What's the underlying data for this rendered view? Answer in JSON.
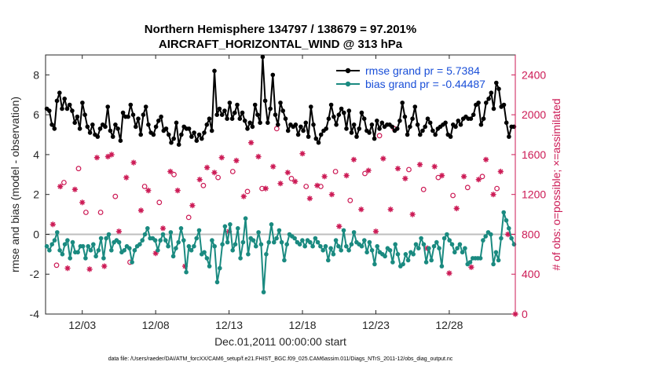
{
  "chart_data": {
    "type": "line",
    "title_line1": "Northern Hemisphere 134797 / 138679 = 97.201%",
    "title_line2": "AIRCRAFT_HORIZONTAL_WIND @ 313 hPa",
    "xlabel": "Dec.01,2011 00:00:00 start",
    "ylabel_left": "rmse and bias (model - observation)",
    "ylabel_right": "# of obs: o=possible; ×=assimilated",
    "footnote": "data file: /Users/raeder/DAI/ATM_forcXX/CAM6_setup/f.e21.FHIST_BGC.f09_025.CAM6assim.011/Diags_NTrS_2011-12/obs_diag_output.nc",
    "xlim": [
      0.5,
      32.5
    ],
    "ylim_left": [
      -4,
      9
    ],
    "ylim_right": [
      0,
      2600
    ],
    "x_ticks": [
      3,
      8,
      13,
      18,
      23,
      28
    ],
    "x_tick_labels": [
      "12/03",
      "12/08",
      "12/13",
      "12/18",
      "12/23",
      "12/28"
    ],
    "y_left_ticks": [
      -4,
      -2,
      0,
      2,
      4,
      6,
      8
    ],
    "y_right_ticks": [
      0,
      400,
      800,
      1200,
      1600,
      2000,
      2400
    ],
    "legend": [
      "rmse grand pr = 5.7384",
      "bias grand pr = -0.44487"
    ],
    "colors": {
      "rmse": "#000000",
      "bias": "#1a8a80",
      "obs": "#cc1a55",
      "zero_line": "#bfbfbf",
      "legend_text": "#1a4fd8"
    },
    "series": [
      {
        "name": "rmse",
        "axis": "left",
        "values": [
          6.3,
          6.2,
          5.5,
          5.3,
          6.7,
          7.1,
          6.3,
          6.8,
          6.3,
          6.5,
          6.2,
          5.6,
          5.9,
          5.3,
          6.6,
          6.0,
          5.4,
          5.1,
          5.5,
          5.0,
          4.9,
          5.3,
          5.5,
          5.4,
          6.4,
          5.2,
          4.9,
          5.5,
          5.3,
          4.7,
          6.1,
          5.9,
          5.9,
          6.5,
          6.0,
          5.4,
          5.8,
          5.0,
          6.0,
          6.4,
          5.5,
          5.1,
          5.0,
          5.4,
          5.7,
          5.9,
          5.2,
          5.3,
          5.0,
          4.6,
          4.8,
          5.6,
          4.5,
          5.0,
          5.4,
          5.3,
          5.3,
          4.9,
          5.1,
          4.7,
          5.0,
          4.8,
          5.1,
          5.5,
          5.8,
          5.2,
          8.2,
          6.0,
          6.3,
          6.0,
          6.2,
          5.8,
          6.6,
          5.8,
          6.1,
          6.5,
          5.8,
          6.1,
          5.7,
          5.3,
          5.6,
          5.4,
          6.5,
          6.0,
          5.6,
          8.9,
          6.7,
          5.6,
          6.3,
          8.0,
          6.0,
          5.5,
          6.6,
          6.2,
          5.8,
          5.2,
          5.5,
          5.4,
          5.5,
          5.0,
          5.4,
          5.2,
          5.6,
          4.9,
          6.4,
          5.5,
          4.8,
          4.6,
          5.0,
          5.2,
          5.3,
          5.8,
          6.5,
          5.9,
          5.5,
          6.0,
          6.3,
          6.1,
          5.3,
          6.2,
          5.1,
          5.5,
          4.9,
          5.3,
          6.1,
          5.8,
          5.2,
          5.1,
          5.5,
          4.8,
          5.7,
          5.3,
          5.6,
          5.4,
          5.5,
          5.5,
          5.4,
          5.2,
          5.3,
          5.7,
          6.6,
          5.9,
          5.0,
          5.4,
          5.8,
          6.4,
          5.5,
          5.0,
          5.2,
          5.4,
          5.8,
          5.6,
          5.2,
          5.0,
          5.3,
          5.4,
          5.5,
          5.6,
          5.0,
          4.9,
          5.5,
          5.4,
          5.7,
          5.5,
          5.8,
          5.9,
          5.8,
          5.8,
          6.0,
          6.5,
          6.6,
          5.5,
          5.8,
          6.6,
          6.8,
          7.1,
          6.3,
          7.6,
          7.3,
          6.4,
          6.5,
          5.6,
          4.9,
          5.4,
          5.4
        ]
      },
      {
        "name": "bias",
        "axis": "left",
        "values": [
          -0.6,
          -0.8,
          -0.5,
          -0.3,
          0.1,
          -0.8,
          -1.0,
          -0.5,
          -0.3,
          -1.2,
          -0.4,
          -0.9,
          -0.9,
          -0.6,
          -0.6,
          -1.2,
          -0.6,
          -0.8,
          -0.5,
          -1.1,
          -0.8,
          -0.2,
          -1.2,
          -0.2,
          0.0,
          -0.8,
          -0.4,
          -0.3,
          -0.4,
          -0.9,
          -0.8,
          -0.6,
          -0.7,
          -1.4,
          -0.8,
          -0.6,
          -0.5,
          -0.3,
          0.0,
          0.3,
          -0.2,
          -0.2,
          -0.3,
          -0.8,
          -0.3,
          0.0,
          -0.3,
          -0.6,
          0.1,
          -1.1,
          -0.7,
          -0.4,
          0.3,
          -0.3,
          -1.9,
          -0.6,
          -0.8,
          -0.6,
          -0.2,
          0.2,
          -1.0,
          -0.9,
          -1.2,
          -1.6,
          -0.3,
          -0.6,
          -2.4,
          -1.7,
          -0.5,
          0.4,
          -0.4,
          0.5,
          -0.8,
          -0.5,
          0.3,
          -1.2,
          -0.4,
          0.8,
          -1.0,
          -0.2,
          -0.3,
          -0.6,
          0.1,
          -0.5,
          -2.9,
          -1.0,
          -0.4,
          0.5,
          -0.4,
          -0.2,
          0.2,
          -0.4,
          -1.3,
          -0.5,
          0.0,
          -0.1,
          -0.2,
          -0.4,
          -0.5,
          -0.3,
          -0.6,
          -0.3,
          -0.4,
          -0.6,
          -0.2,
          -0.4,
          -0.6,
          -0.8,
          -0.6,
          -1.3,
          -0.7,
          -1.0,
          -0.3,
          -0.6,
          -0.8,
          0.2,
          -0.6,
          -0.8,
          -0.5,
          0.1,
          -0.4,
          -0.5,
          -0.6,
          -0.3,
          -0.9,
          -0.4,
          -0.8,
          -1.5,
          -0.6,
          -0.9,
          -1.0,
          -1.1,
          -0.7,
          -0.8,
          -1.4,
          -0.5,
          -1.0,
          -1.6,
          -1.5,
          -1.0,
          -1.3,
          -0.9,
          -1.0,
          -0.5,
          -0.7,
          -0.2,
          -0.5,
          -1.4,
          -0.7,
          -1.3,
          -0.6,
          -0.4,
          -0.7,
          -1.6,
          -0.2,
          0.0,
          -0.3,
          -0.5,
          -0.9,
          -0.7,
          -0.5,
          -0.9,
          -0.7,
          -1.5,
          -1.4,
          -1.2,
          -1.2,
          -1.2,
          -1.2,
          -0.3,
          -0.1,
          0.1,
          0.0,
          -1.5,
          -0.9,
          -1.3,
          -0.2,
          1.1,
          0.7,
          0.3,
          -0.2,
          -0.5
        ]
      },
      {
        "name": "obs_possible",
        "axis": "right",
        "marker": "o",
        "x": [
          1.25,
          1.75,
          2.75,
          3.25,
          4.25,
          5.25,
          6.25,
          7.25,
          8.25,
          9.25,
          10.25,
          11.25,
          12.25,
          13.25,
          14.25,
          15.25,
          16.25,
          17.25,
          18.25,
          19.25,
          20.25,
          21.25,
          22.25,
          23.25,
          24.25,
          25.25,
          26.25,
          27.25,
          28.25,
          29.25,
          30.25,
          31.25
        ],
        "values": [
          490,
          1320,
          1460,
          1020,
          1020,
          1180,
          520,
          1280,
          1120,
          1400,
          970,
          1290,
          1370,
          1430,
          1230,
          1260,
          1860,
          1360,
          1280,
          1280,
          1430,
          1140,
          1410,
          1790,
          1860,
          1450,
          1250,
          1370,
          1190,
          1270,
          1380,
          1260
        ]
      },
      {
        "name": "obs_assimilated",
        "axis": "right",
        "marker": "*",
        "x": [
          1.0,
          1.5,
          2.0,
          2.5,
          3.0,
          3.5,
          4.0,
          4.5,
          4.75,
          5.0,
          5.5,
          6.0,
          6.5,
          7.0,
          7.5,
          8.0,
          8.5,
          9.0,
          9.5,
          10.0,
          10.5,
          11.0,
          11.5,
          12.0,
          12.5,
          13.0,
          13.5,
          14.0,
          14.5,
          15.0,
          15.5,
          16.0,
          16.5,
          17.0,
          17.5,
          18.0,
          18.5,
          19.0,
          19.5,
          20.0,
          20.5,
          21.0,
          21.5,
          22.0,
          22.5,
          23.0,
          23.5,
          24.0,
          24.5,
          25.0,
          25.5,
          26.0,
          26.5,
          27.0,
          27.5,
          28.0,
          28.5,
          29.0,
          29.5,
          30.0,
          30.5,
          31.0,
          31.5,
          32.0,
          32.5
        ],
        "values": [
          900,
          1280,
          460,
          1250,
          1120,
          450,
          1570,
          480,
          1580,
          1600,
          830,
          1370,
          1520,
          1040,
          1240,
          610,
          860,
          1430,
          1240,
          480,
          1090,
          1350,
          1470,
          1420,
          1570,
          830,
          1540,
          1180,
          1720,
          1580,
          1260,
          1480,
          1310,
          1420,
          1330,
          1610,
          1160,
          1290,
          1380,
          1200,
          880,
          1390,
          1550,
          1050,
          1440,
          830,
          1560,
          1050,
          1460,
          1360,
          1000,
          1500,
          660,
          1480,
          1390,
          410,
          1060,
          1380,
          470,
          1350,
          1550,
          1200,
          1430,
          800,
          0
        ]
      }
    ]
  }
}
